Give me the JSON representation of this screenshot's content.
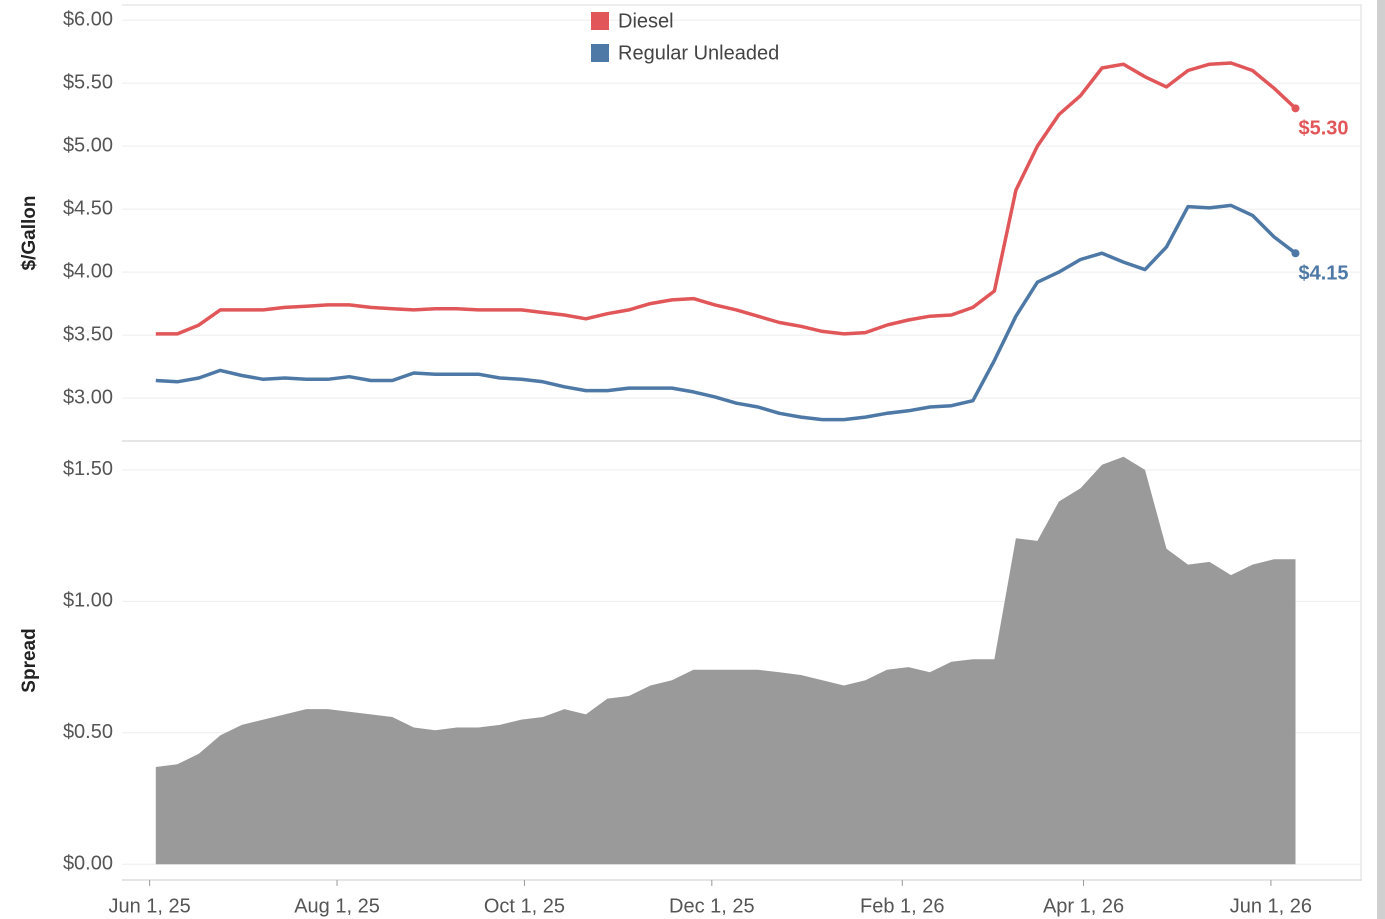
{
  "chart_data": [
    {
      "type": "line",
      "y_label": "$/Gallon",
      "legend": "top",
      "x": [
        "2025-06-03",
        "2025-06-10",
        "2025-06-17",
        "2025-06-24",
        "2025-07-01",
        "2025-07-08",
        "2025-07-15",
        "2025-07-22",
        "2025-07-29",
        "2025-08-05",
        "2025-08-12",
        "2025-08-19",
        "2025-08-26",
        "2025-09-02",
        "2025-09-09",
        "2025-09-16",
        "2025-09-23",
        "2025-09-30",
        "2025-10-07",
        "2025-10-14",
        "2025-10-21",
        "2025-10-28",
        "2025-11-04",
        "2025-11-11",
        "2025-11-18",
        "2025-11-25",
        "2025-12-02",
        "2025-12-09",
        "2025-12-16",
        "2025-12-23",
        "2025-12-30",
        "2026-01-06",
        "2026-01-13",
        "2026-01-20",
        "2026-01-27",
        "2026-02-03",
        "2026-02-10",
        "2026-02-17",
        "2026-02-24",
        "2026-03-03",
        "2026-03-10",
        "2026-03-17",
        "2026-03-24",
        "2026-03-31",
        "2026-04-07",
        "2026-04-14",
        "2026-04-21",
        "2026-04-28",
        "2026-05-05",
        "2026-05-12",
        "2026-05-19",
        "2026-05-26",
        "2026-06-02",
        "2026-06-09"
      ],
      "xlim": [
        "2025-05-23",
        "2026-06-30"
      ],
      "series": [
        {
          "name": "Diesel",
          "color": "#e15759",
          "end_label": "$5.30",
          "values": [
            3.51,
            3.51,
            3.58,
            3.7,
            3.7,
            3.7,
            3.72,
            3.73,
            3.74,
            3.74,
            3.72,
            3.71,
            3.7,
            3.71,
            3.71,
            3.7,
            3.7,
            3.7,
            3.68,
            3.66,
            3.63,
            3.67,
            3.7,
            3.75,
            3.78,
            3.79,
            3.74,
            3.7,
            3.65,
            3.6,
            3.57,
            3.53,
            3.51,
            3.52,
            3.58,
            3.62,
            3.65,
            3.66,
            3.72,
            3.85,
            4.65,
            5.0,
            5.25,
            5.4,
            5.62,
            5.65,
            5.55,
            5.47,
            5.6,
            5.65,
            5.66,
            5.6,
            5.46,
            5.3
          ]
        },
        {
          "name": "Regular Unleaded",
          "color": "#4e79a7",
          "end_label": "$4.15",
          "values": [
            3.14,
            3.13,
            3.16,
            3.22,
            3.18,
            3.15,
            3.16,
            3.15,
            3.15,
            3.17,
            3.14,
            3.14,
            3.2,
            3.19,
            3.19,
            3.19,
            3.16,
            3.15,
            3.13,
            3.09,
            3.06,
            3.06,
            3.08,
            3.08,
            3.08,
            3.05,
            3.01,
            2.96,
            2.93,
            2.88,
            2.85,
            2.83,
            2.83,
            2.85,
            2.88,
            2.9,
            2.93,
            2.94,
            2.98,
            3.3,
            3.65,
            3.92,
            4.0,
            4.1,
            4.15,
            4.08,
            4.02,
            4.2,
            4.52,
            4.51,
            4.53,
            4.45,
            4.28,
            4.15
          ]
        }
      ],
      "ylim": [
        2.66,
        6.12
      ],
      "yticks": [
        {
          "value": 3.0,
          "label": "$3.00"
        },
        {
          "value": 3.5,
          "label": "$3.50"
        },
        {
          "value": 4.0,
          "label": "$4.00"
        },
        {
          "value": 4.5,
          "label": "$4.50"
        },
        {
          "value": 5.0,
          "label": "$5.00"
        },
        {
          "value": 5.5,
          "label": "$5.50"
        },
        {
          "value": 6.0,
          "label": "$6.00"
        }
      ],
      "grid": true
    },
    {
      "type": "area",
      "y_label": "Spread",
      "color": "#9a9a9a",
      "x": [
        "2025-06-03",
        "2025-06-10",
        "2025-06-17",
        "2025-06-24",
        "2025-07-01",
        "2025-07-08",
        "2025-07-15",
        "2025-07-22",
        "2025-07-29",
        "2025-08-05",
        "2025-08-12",
        "2025-08-19",
        "2025-08-26",
        "2025-09-02",
        "2025-09-09",
        "2025-09-16",
        "2025-09-23",
        "2025-09-30",
        "2025-10-07",
        "2025-10-14",
        "2025-10-21",
        "2025-10-28",
        "2025-11-04",
        "2025-11-11",
        "2025-11-18",
        "2025-11-25",
        "2025-12-02",
        "2025-12-09",
        "2025-12-16",
        "2025-12-23",
        "2025-12-30",
        "2026-01-06",
        "2026-01-13",
        "2026-01-20",
        "2026-01-27",
        "2026-02-03",
        "2026-02-10",
        "2026-02-17",
        "2026-02-24",
        "2026-03-03",
        "2026-03-10",
        "2026-03-17",
        "2026-03-24",
        "2026-03-31",
        "2026-04-07",
        "2026-04-14",
        "2026-04-21",
        "2026-04-28",
        "2026-05-05",
        "2026-05-12",
        "2026-05-19",
        "2026-05-26",
        "2026-06-02",
        "2026-06-09"
      ],
      "values": [
        0.37,
        0.38,
        0.42,
        0.49,
        0.53,
        0.55,
        0.57,
        0.59,
        0.59,
        0.58,
        0.57,
        0.56,
        0.52,
        0.51,
        0.52,
        0.52,
        0.53,
        0.55,
        0.56,
        0.59,
        0.57,
        0.63,
        0.64,
        0.68,
        0.7,
        0.74,
        0.74,
        0.74,
        0.74,
        0.73,
        0.72,
        0.7,
        0.68,
        0.7,
        0.74,
        0.75,
        0.73,
        0.77,
        0.78,
        0.78,
        1.24,
        1.23,
        1.38,
        1.43,
        1.52,
        1.55,
        1.5,
        1.2,
        1.14,
        1.15,
        1.1,
        1.14,
        1.16,
        1.16
      ],
      "xlim": [
        "2025-05-23",
        "2026-06-30"
      ],
      "xticks": [
        {
          "value": "2025-06-01",
          "label": "Jun 1, 25"
        },
        {
          "value": "2025-08-01",
          "label": "Aug 1, 25"
        },
        {
          "value": "2025-10-01",
          "label": "Oct 1, 25"
        },
        {
          "value": "2025-12-01",
          "label": "Dec 1, 25"
        },
        {
          "value": "2026-02-01",
          "label": "Feb 1, 26"
        },
        {
          "value": "2026-04-01",
          "label": "Apr 1, 26"
        },
        {
          "value": "2026-06-01",
          "label": "Jun 1, 26"
        }
      ],
      "ylim": [
        -0.06,
        1.61
      ],
      "yticks": [
        {
          "value": 0,
          "label": "$0.00"
        },
        {
          "value": 0.5,
          "label": "$0.50"
        },
        {
          "value": 1.0,
          "label": "$1.00"
        },
        {
          "value": 1.5,
          "label": "$1.50"
        }
      ],
      "grid": true
    }
  ]
}
